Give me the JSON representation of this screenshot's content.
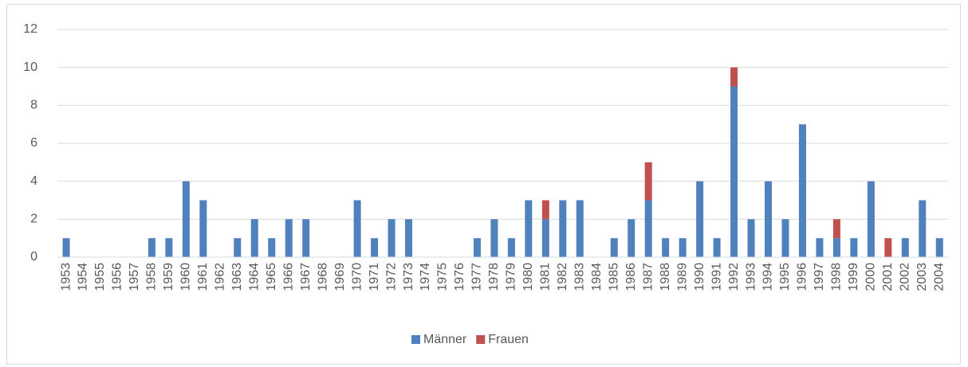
{
  "chart_data": {
    "type": "stacked_bar",
    "categories": [
      "1953",
      "1954",
      "1955",
      "1956",
      "1957",
      "1958",
      "1959",
      "1960",
      "1961",
      "1962",
      "1963",
      "1964",
      "1965",
      "1966",
      "1967",
      "1968",
      "1969",
      "1970",
      "1971",
      "1972",
      "1973",
      "1974",
      "1975",
      "1976",
      "1977",
      "1978",
      "1979",
      "1980",
      "1981",
      "1982",
      "1983",
      "1984",
      "1985",
      "1986",
      "1987",
      "1988",
      "1989",
      "1990",
      "1991",
      "1992",
      "1993",
      "1994",
      "1995",
      "1996",
      "1997",
      "1998",
      "1999",
      "2000",
      "2001",
      "2002",
      "2003",
      "2004"
    ],
    "series": [
      {
        "name": "Männer",
        "color": "#4f81bd",
        "values": [
          1,
          0,
          0,
          0,
          0,
          1,
          1,
          4,
          3,
          0,
          1,
          2,
          1,
          2,
          2,
          0,
          0,
          3,
          1,
          2,
          2,
          0,
          0,
          0,
          1,
          2,
          1,
          3,
          2,
          3,
          3,
          0,
          1,
          2,
          3,
          1,
          1,
          4,
          1,
          9,
          2,
          4,
          2,
          7,
          1,
          1,
          1,
          4,
          0,
          1,
          3,
          1
        ]
      },
      {
        "name": "Frauen",
        "color": "#c0504d",
        "values": [
          0,
          0,
          0,
          0,
          0,
          0,
          0,
          0,
          0,
          0,
          0,
          0,
          0,
          0,
          0,
          0,
          0,
          0,
          0,
          0,
          0,
          0,
          0,
          0,
          0,
          0,
          0,
          0,
          1,
          0,
          0,
          0,
          0,
          0,
          2,
          0,
          0,
          0,
          0,
          1,
          0,
          0,
          0,
          0,
          0,
          1,
          0,
          0,
          1,
          0,
          0,
          0
        ]
      }
    ],
    "ylim": [
      0,
      12
    ],
    "yticks": [
      0,
      2,
      4,
      6,
      8,
      10,
      12
    ],
    "grid": true,
    "legend": "bottom"
  }
}
